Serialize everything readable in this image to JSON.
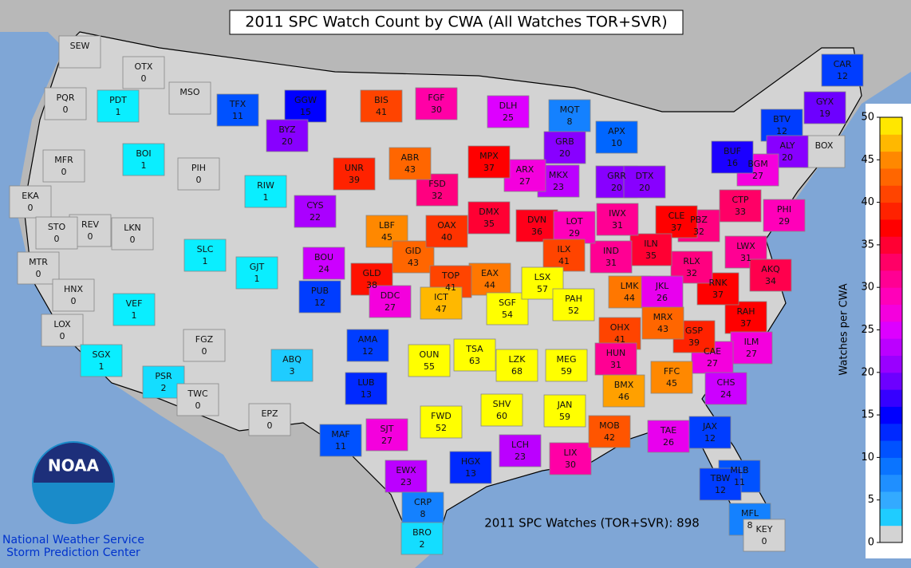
{
  "map": {
    "title": "2011 SPC Watch Count by CWA (All Watches TOR+SVR)",
    "total_label": "2011 SPC Watches (TOR+SVR): 898",
    "logo_text": "NOAA",
    "agency_lines": [
      "National Weather Service",
      "Storm Prediction Center"
    ],
    "colorbar": {
      "label": "Watches per CWA",
      "lim": [
        0,
        50
      ],
      "ticks": [
        0,
        5,
        10,
        15,
        20,
        25,
        30,
        35,
        40,
        45,
        50
      ],
      "zero_color": "#d3d3d3",
      "stops": [
        {
          "value": 0,
          "color": "#00ffff"
        },
        {
          "value": 5,
          "color": "#33aaff"
        },
        {
          "value": 10,
          "color": "#0066ff"
        },
        {
          "value": 15,
          "color": "#0000ff"
        },
        {
          "value": 20,
          "color": "#8800ff"
        },
        {
          "value": 25,
          "color": "#dd00ff"
        },
        {
          "value": 28,
          "color": "#ff00cc"
        },
        {
          "value": 32,
          "color": "#ff0080"
        },
        {
          "value": 37,
          "color": "#ff0000"
        },
        {
          "value": 41,
          "color": "#ff4400"
        },
        {
          "value": 45,
          "color": "#ff8800"
        },
        {
          "value": 50,
          "color": "#ffff00"
        }
      ]
    },
    "cwas": [
      {
        "id": "SEW",
        "count": null
      },
      {
        "id": "OTX",
        "count": 0
      },
      {
        "id": "PDT",
        "count": 1
      },
      {
        "id": "PQR",
        "count": 0
      },
      {
        "id": "MSO",
        "count": null
      },
      {
        "id": "TFX",
        "count": 11
      },
      {
        "id": "GGW",
        "count": 15
      },
      {
        "id": "BIS",
        "count": 41
      },
      {
        "id": "FGF",
        "count": 30
      },
      {
        "id": "DLH",
        "count": 25
      },
      {
        "id": "MQT",
        "count": 8
      },
      {
        "id": "CAR",
        "count": 12
      },
      {
        "id": "GYX",
        "count": 19
      },
      {
        "id": "BTV",
        "count": 12
      },
      {
        "id": "BOX",
        "count": null
      },
      {
        "id": "ALY",
        "count": 20
      },
      {
        "id": "BGM",
        "count": 27
      },
      {
        "id": "BUF",
        "count": 16
      },
      {
        "id": "CTP",
        "count": 33
      },
      {
        "id": "PHI",
        "count": 29
      },
      {
        "id": "LWX",
        "count": 31
      },
      {
        "id": "AKQ",
        "count": 34
      },
      {
        "id": "RAH",
        "count": 37
      },
      {
        "id": "ILM",
        "count": 27
      },
      {
        "id": "CAE",
        "count": 27
      },
      {
        "id": "CHS",
        "count": 24
      },
      {
        "id": "GSP",
        "count": 39
      },
      {
        "id": "RNK",
        "count": 37
      },
      {
        "id": "RLX",
        "count": 32
      },
      {
        "id": "PBZ",
        "count": 32
      },
      {
        "id": "CLE",
        "count": 37
      },
      {
        "id": "ILN",
        "count": 35
      },
      {
        "id": "IND",
        "count": 31
      },
      {
        "id": "IWX",
        "count": 31
      },
      {
        "id": "GRR",
        "count": 20
      },
      {
        "id": "DTX",
        "count": 20
      },
      {
        "id": "APX",
        "count": 10
      },
      {
        "id": "GRB",
        "count": 20
      },
      {
        "id": "MKX",
        "count": 23
      },
      {
        "id": "ARX",
        "count": 27
      },
      {
        "id": "MPX",
        "count": 37
      },
      {
        "id": "DMX",
        "count": 35
      },
      {
        "id": "FSD",
        "count": 32
      },
      {
        "id": "ABR",
        "count": 43
      },
      {
        "id": "UNR",
        "count": 39
      },
      {
        "id": "BYZ",
        "count": 20
      },
      {
        "id": "RIW",
        "count": 1
      },
      {
        "id": "CYS",
        "count": 22
      },
      {
        "id": "LBF",
        "count": 45
      },
      {
        "id": "GID",
        "count": 43
      },
      {
        "id": "OAX",
        "count": 40
      },
      {
        "id": "DVN",
        "count": 36
      },
      {
        "id": "LOT",
        "count": 29
      },
      {
        "id": "ILX",
        "count": 41
      },
      {
        "id": "EAX",
        "count": 44
      },
      {
        "id": "TOP",
        "count": 41
      },
      {
        "id": "GLD",
        "count": 38
      },
      {
        "id": "BOU",
        "count": 24
      },
      {
        "id": "PUB",
        "count": 12
      },
      {
        "id": "GJT",
        "count": 1
      },
      {
        "id": "SLC",
        "count": 1
      },
      {
        "id": "PIH",
        "count": 0
      },
      {
        "id": "BOI",
        "count": 1
      },
      {
        "id": "MFR",
        "count": 0
      },
      {
        "id": "EKA",
        "count": 0
      },
      {
        "id": "REV",
        "count": 0
      },
      {
        "id": "LKN",
        "count": 0
      },
      {
        "id": "STO",
        "count": 0
      },
      {
        "id": "MTR",
        "count": 0
      },
      {
        "id": "HNX",
        "count": 0
      },
      {
        "id": "VEF",
        "count": 1
      },
      {
        "id": "LOX",
        "count": 0
      },
      {
        "id": "SGX",
        "count": 1
      },
      {
        "id": "PSR",
        "count": 2
      },
      {
        "id": "TWC",
        "count": 0
      },
      {
        "id": "FGZ",
        "count": 0
      },
      {
        "id": "ABQ",
        "count": 3
      },
      {
        "id": "EPZ",
        "count": 0
      },
      {
        "id": "AMA",
        "count": 12
      },
      {
        "id": "LUB",
        "count": 13
      },
      {
        "id": "MAF",
        "count": 11
      },
      {
        "id": "SJT",
        "count": 27
      },
      {
        "id": "OUN",
        "count": 55
      },
      {
        "id": "TSA",
        "count": 63
      },
      {
        "id": "ICT",
        "count": 47
      },
      {
        "id": "DDC",
        "count": 27
      },
      {
        "id": "SGF",
        "count": 54
      },
      {
        "id": "LSX",
        "count": 57
      },
      {
        "id": "PAH",
        "count": 52
      },
      {
        "id": "LZK",
        "count": 68
      },
      {
        "id": "MEG",
        "count": 59
      },
      {
        "id": "OHX",
        "count": 41
      },
      {
        "id": "HUN",
        "count": 31
      },
      {
        "id": "LMK",
        "count": 44
      },
      {
        "id": "JKL",
        "count": 26
      },
      {
        "id": "MRX",
        "count": 43
      },
      {
        "id": "FFC",
        "count": 45
      },
      {
        "id": "BMX",
        "count": 46
      },
      {
        "id": "JAN",
        "count": 59
      },
      {
        "id": "SHV",
        "count": 60
      },
      {
        "id": "FWD",
        "count": 52
      },
      {
        "id": "EWX",
        "count": 23
      },
      {
        "id": "CRP",
        "count": 8
      },
      {
        "id": "BRO",
        "count": 2
      },
      {
        "id": "HGX",
        "count": 13
      },
      {
        "id": "LCH",
        "count": 23
      },
      {
        "id": "LIX",
        "count": 30
      },
      {
        "id": "MOB",
        "count": 42
      },
      {
        "id": "TAE",
        "count": 26
      },
      {
        "id": "JAX",
        "count": 12
      },
      {
        "id": "MLB",
        "count": 11
      },
      {
        "id": "TBW",
        "count": 12
      },
      {
        "id": "MFL",
        "count": 8
      },
      {
        "id": "KEY",
        "count": 0
      }
    ]
  }
}
